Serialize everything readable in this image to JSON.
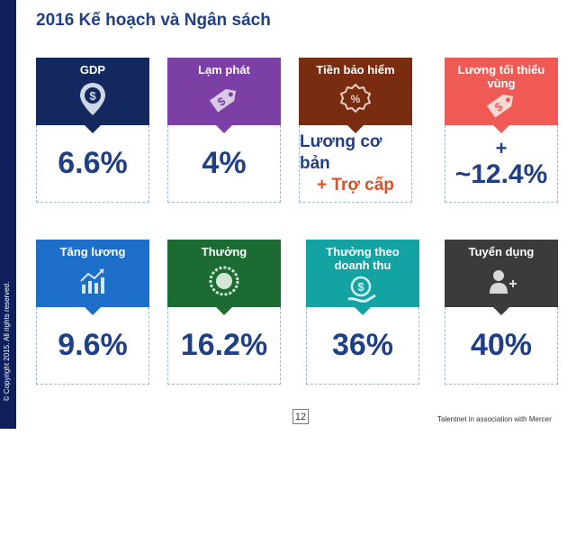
{
  "title": "2016 Kế hoạch và Ngân sách",
  "copyright": "© Copyright 2015. All rights reserved.",
  "page_number": "12",
  "footer": "Talentnet in association with Mercer",
  "cards": [
    {
      "label": "GDP",
      "value": "6.6%",
      "color": "#13285e",
      "icon": "money-pin-icon"
    },
    {
      "label": "Lạm phát",
      "value": "4%",
      "color": "#7c3fa6",
      "icon": "price-tag-icon"
    },
    {
      "label": "Tiền bảo hiểm",
      "line1": "Lương cơ bản",
      "line2": "+ Trợ cấp",
      "color": "#7a2c10",
      "icon": "percent-badge-icon"
    },
    {
      "label": "Lương tối thiểu vùng",
      "line1": "+",
      "line2": "~12.4%",
      "color": "#f05a54",
      "icon": "price-tag-icon"
    },
    {
      "label": "Tăng lương",
      "value": "9.6%",
      "color": "#1d6ec9",
      "icon": "growth-chart-icon"
    },
    {
      "label": "Thưởng",
      "value": "16.2%",
      "color": "#1c6b33",
      "icon": "medal-icon"
    },
    {
      "label": "Thưởng theo doanh thu",
      "value": "36%",
      "color": "#13a3a3",
      "icon": "coin-hand-icon"
    },
    {
      "label": "Tuyển dụng",
      "value": "40%",
      "color": "#3b3b3b",
      "icon": "add-user-icon"
    }
  ]
}
